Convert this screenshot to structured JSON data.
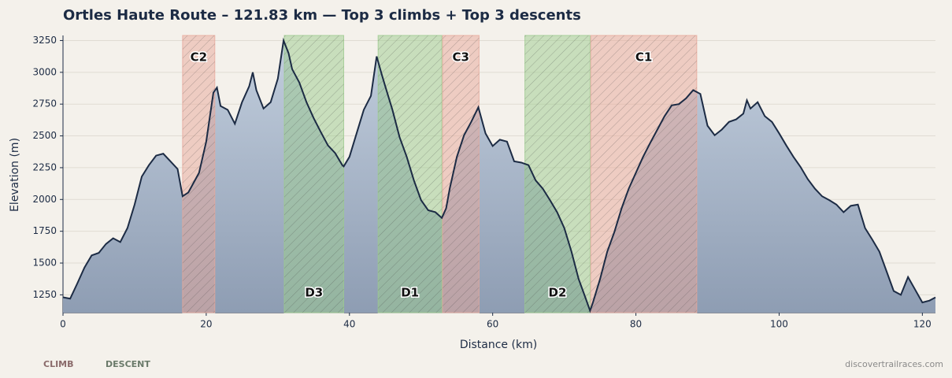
{
  "chart_data": {
    "type": "elevation",
    "title": "Ortles Haute Route – 121.83 km — Top 3 climbs + Top 3 descents",
    "x_label": "Distance (km)",
    "y_label": "Elevation (m)",
    "x": [
      0,
      1,
      2,
      3,
      4,
      5,
      6,
      7,
      8,
      9,
      10,
      11,
      12,
      13,
      14,
      15,
      16,
      16.7,
      17.5,
      19,
      20,
      21,
      21.5,
      22,
      23,
      24,
      25,
      26,
      26.5,
      27,
      28,
      29,
      30,
      30.8,
      31.5,
      32,
      33,
      34,
      35,
      36,
      37,
      38,
      39,
      39.2,
      40,
      41,
      42,
      43,
      43.8,
      44.5,
      45,
      46,
      47,
      48,
      49,
      50,
      51,
      52,
      52.9,
      53.5,
      54,
      55,
      56,
      57,
      58,
      59,
      60,
      61,
      62,
      63,
      64,
      65,
      66,
      67,
      68,
      69,
      70,
      71,
      72,
      73,
      73.6,
      74,
      75,
      76,
      77,
      78,
      79,
      80,
      81,
      82,
      83,
      84,
      85,
      86,
      87,
      88,
      89,
      90,
      91,
      92,
      93,
      94,
      95,
      95.5,
      96,
      97,
      98,
      99,
      100,
      101,
      102,
      103,
      104,
      105,
      106,
      107,
      108,
      109,
      110,
      111,
      112,
      113,
      114,
      115,
      116,
      117,
      118,
      119,
      120,
      121,
      121.83
    ],
    "values": [
      1231,
      1220,
      1340,
      1465,
      1560,
      1580,
      1650,
      1695,
      1665,
      1775,
      1960,
      2180,
      2270,
      2345,
      2360,
      2300,
      2240,
      2025,
      2055,
      2210,
      2455,
      2840,
      2880,
      2735,
      2705,
      2595,
      2765,
      2890,
      3000,
      2860,
      2715,
      2765,
      2950,
      3250,
      3150,
      3025,
      2920,
      2765,
      2640,
      2530,
      2425,
      2365,
      2270,
      2260,
      2335,
      2520,
      2705,
      2815,
      3125,
      2985,
      2890,
      2705,
      2490,
      2335,
      2150,
      1995,
      1915,
      1900,
      1855,
      1930,
      2085,
      2335,
      2505,
      2610,
      2725,
      2520,
      2420,
      2470,
      2455,
      2300,
      2290,
      2270,
      2150,
      2085,
      1995,
      1900,
      1775,
      1590,
      1375,
      1220,
      1125,
      1190,
      1375,
      1590,
      1745,
      1930,
      2085,
      2210,
      2335,
      2445,
      2550,
      2655,
      2740,
      2750,
      2795,
      2860,
      2830,
      2580,
      2505,
      2550,
      2610,
      2630,
      2675,
      2780,
      2715,
      2765,
      2655,
      2610,
      2520,
      2425,
      2335,
      2255,
      2160,
      2085,
      2025,
      1995,
      1960,
      1900,
      1950,
      1960,
      1775,
      1685,
      1590,
      1435,
      1280,
      1250,
      1390,
      1290,
      1190,
      1205,
      1230
    ],
    "color": "#1c2b44",
    "xlim": [
      0,
      121.83
    ],
    "xticks": [
      0,
      20,
      40,
      60,
      80,
      100,
      120
    ],
    "ylim": [
      1110,
      3290
    ],
    "yticks": [
      1250,
      1500,
      1750,
      2000,
      2250,
      2500,
      2750,
      3000,
      3250
    ],
    "grid": true,
    "segments": [
      {
        "label": "C2",
        "kind": "climb",
        "start": 16.7,
        "end": 21.2
      },
      {
        "label": "D3",
        "kind": "descent",
        "start": 30.9,
        "end": 39.2
      },
      {
        "label": "D1",
        "kind": "descent",
        "start": 44.0,
        "end": 52.9
      },
      {
        "label": "C3",
        "kind": "climb",
        "start": 53.0,
        "end": 58.1
      },
      {
        "label": "D2",
        "kind": "descent",
        "start": 64.5,
        "end": 73.6
      },
      {
        "label": "C1",
        "kind": "climb",
        "start": 73.7,
        "end": 88.5
      }
    ],
    "legend": [
      {
        "name": "CLIMB",
        "kind": "climb",
        "color": "#e8a89a"
      },
      {
        "name": "DESCENT",
        "kind": "descent",
        "color": "#9ccb8e"
      }
    ],
    "source": "discovertrailraces.com"
  }
}
